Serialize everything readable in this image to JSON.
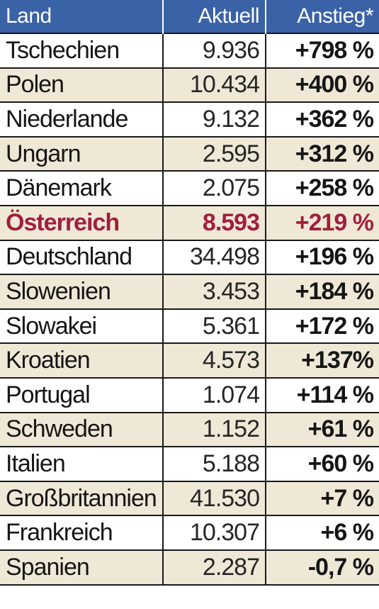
{
  "header": {
    "land": "Land",
    "aktuell": "Aktuell",
    "anstieg": "Anstieg*"
  },
  "highlight_color": "#a01f3c",
  "header_color": "#3a62a6",
  "rows": [
    {
      "land": "Tschechien",
      "aktuell": "9.936",
      "anstieg": "+798 %"
    },
    {
      "land": "Polen",
      "aktuell": "10.434",
      "anstieg": "+400 %"
    },
    {
      "land": "Niederlande",
      "aktuell": "9.132",
      "anstieg": "+362 %"
    },
    {
      "land": "Ungarn",
      "aktuell": "2.595",
      "anstieg": "+312 %"
    },
    {
      "land": "Dänemark",
      "aktuell": "2.075",
      "anstieg": "+258 %"
    },
    {
      "land": "Österreich",
      "aktuell": "8.593",
      "anstieg": "+219 %"
    },
    {
      "land": "Deutschland",
      "aktuell": "34.498",
      "anstieg": "+196 %"
    },
    {
      "land": "Slowenien",
      "aktuell": "3.453",
      "anstieg": "+184 %"
    },
    {
      "land": "Slowakei",
      "aktuell": "5.361",
      "anstieg": "+172 %"
    },
    {
      "land": "Kroatien",
      "aktuell": "4.573",
      "anstieg": "+137%"
    },
    {
      "land": "Portugal",
      "aktuell": "1.074",
      "anstieg": "+114 %"
    },
    {
      "land": "Schweden",
      "aktuell": "1.152",
      "anstieg": "+61 %"
    },
    {
      "land": "Italien",
      "aktuell": "5.188",
      "anstieg": "+60 %"
    },
    {
      "land": "Großbritannien",
      "aktuell": "41.530",
      "anstieg": "+7 %"
    },
    {
      "land": "Frankreich",
      "aktuell": "10.307",
      "anstieg": "+6 %"
    },
    {
      "land": "Spanien",
      "aktuell": "2.287",
      "anstieg": "-0,7 %"
    }
  ]
}
